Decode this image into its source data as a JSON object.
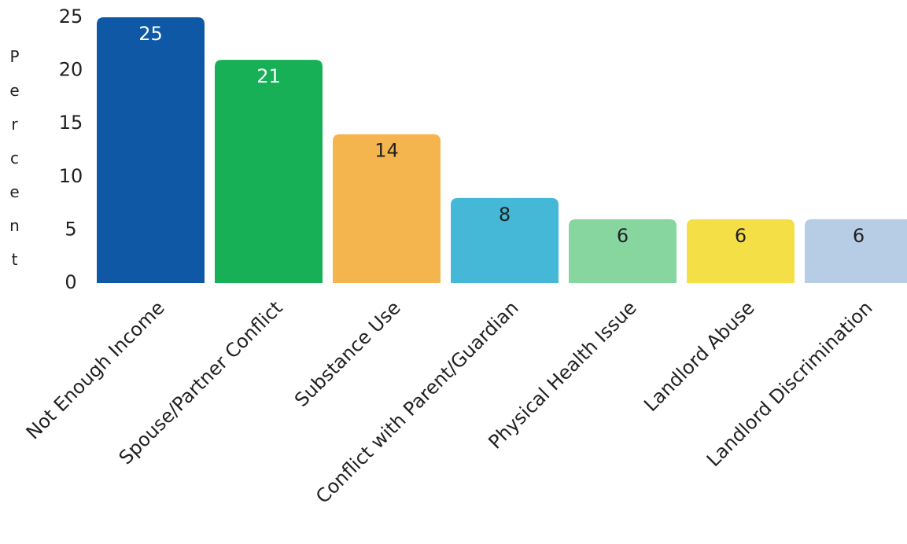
{
  "chart_data": {
    "type": "bar",
    "y_label": "Percent",
    "categories": [
      "Not Enough Income",
      "Spouse/Partner Conflict",
      "Substance Use",
      "Conflict with Parent/Guardian",
      "Physical Health Issue",
      "Landlord Abuse",
      "Landlord Discrimination"
    ],
    "values": [
      25,
      21,
      14,
      8,
      6,
      6,
      6
    ],
    "colors": [
      "#0e58a6",
      "#17b057",
      "#f5b54e",
      "#44b8d6",
      "#87d6a0",
      "#f5df47",
      "#b7cde6"
    ],
    "ylim": [
      0,
      25
    ],
    "yticks": [
      0,
      5,
      10,
      15,
      20,
      25
    ],
    "grid": false
  }
}
